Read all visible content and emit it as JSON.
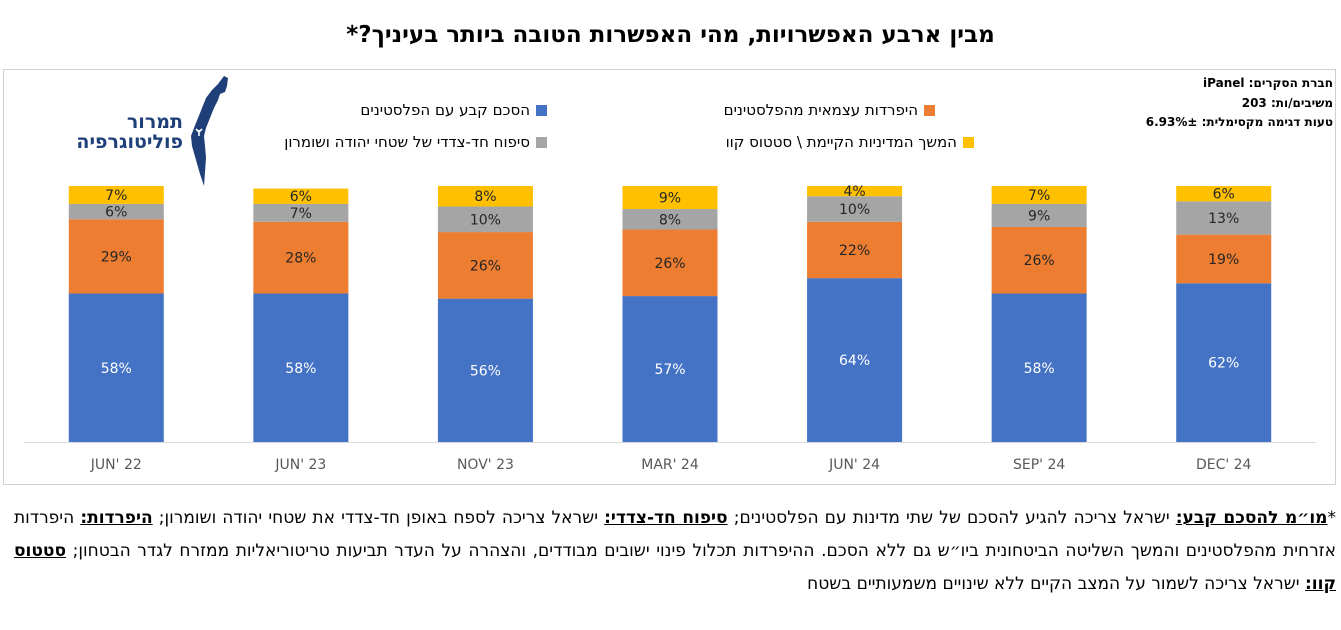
{
  "title": "מבין ארבע האפשרויות, מהי האפשרות הטובה ביותר בעיניך?*",
  "meta": {
    "line1": "חברת הסקרים: iPanel",
    "line2": "משיבים/ות: 203",
    "line3": "טעות דגימה מקסימלית: 6.93%±"
  },
  "logo": {
    "line1": "תמרור",
    "line2": "פוליטוגרפיה"
  },
  "colors": {
    "blue": "#4472c4",
    "orange": "#ed7d31",
    "gray": "#a5a5a5",
    "yellow": "#ffc000",
    "logo": "#1e3f78"
  },
  "footnote": {
    "star": "*",
    "term1": "מו״מ להסכם קבע:",
    "text1": " ישראל צריכה להגיע להסכם של שתי מדינות עם הפלסטינים; ",
    "term2": "סיפוח חד-צדדי:",
    "text2": " ישראל צריכה לספח באופן חד-צדדי את שטחי יהודה ושומרון; ",
    "term3": "היפרדות:",
    "text3": " היפרדות אזרחית מהפלסטינים והמשך השליטה הביטחונית ביו״ש גם ללא הסכם. ההיפרדות תכלול פינוי ישובים מבודדים, והצהרה על העדר תביעות טריטוריאליות ממזרח לגדר הבטחון; ",
    "term4": "סטטוס קוו:",
    "text4": " ישראל צריכה לשמור על המצב הקיים ללא שינויים משמעותיים בשטח"
  },
  "chart_data": {
    "type": "bar",
    "stacked": true,
    "categories": [
      "JUN' 22",
      "JUN' 23",
      "NOV' 23",
      "MAR' 24",
      "JUN' 24",
      "SEP' 24",
      "DEC' 24"
    ],
    "series": [
      {
        "name": "הסכם קבע עם הפלסטינים",
        "color": "#4472c4",
        "values": [
          58,
          58,
          56,
          57,
          64,
          58,
          62
        ]
      },
      {
        "name": "היפרדות עצמאית מהפלסטינים",
        "color": "#ed7d31",
        "values": [
          29,
          28,
          26,
          26,
          22,
          26,
          19
        ]
      },
      {
        "name": "סיפוח חד-צדדי של שטחי יהודה ושומרון",
        "color": "#a5a5a5",
        "values": [
          6,
          7,
          10,
          8,
          10,
          9,
          13
        ]
      },
      {
        "name": "המשך המדיניות הקיימת \\ סטטוס קוו",
        "color": "#ffc000",
        "values": [
          7,
          6,
          8,
          9,
          4,
          7,
          6
        ]
      }
    ],
    "ylim": [
      0,
      100
    ],
    "grid": false,
    "legend": "top"
  }
}
